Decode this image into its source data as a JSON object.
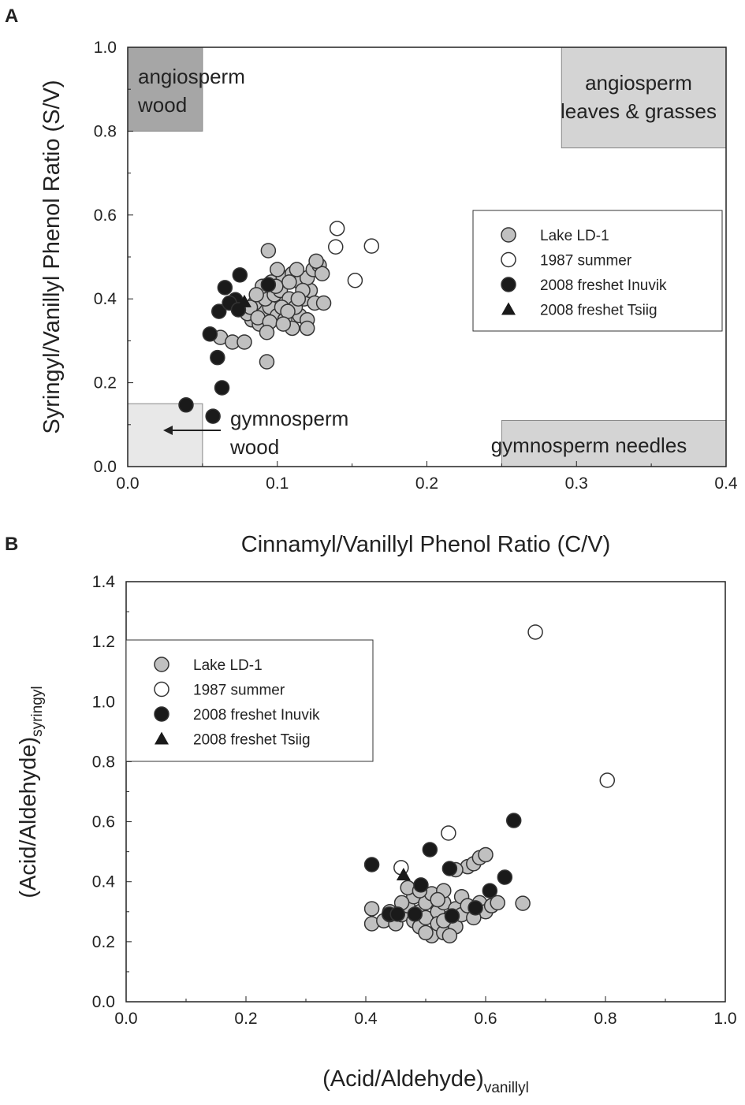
{
  "chart_data": [
    {
      "panel_label": "A",
      "type": "scatter",
      "xlabel": "Cinnamyl/Vanillyl Phenol Ratio (C/V)",
      "ylabel": "Syringyl/Vanillyl Phenol Ratio (S/V)",
      "xlim": [
        0,
        0.4
      ],
      "ylim": [
        0,
        1.0
      ],
      "xticks": [
        "0.0",
        "0.1",
        "0.2",
        "0.3",
        "0.4"
      ],
      "yticks": [
        "0.0",
        "0.2",
        "0.4",
        "0.6",
        "0.8",
        "1.0"
      ],
      "legend_position": "center-right",
      "regions": [
        {
          "label": [
            "angiosperm",
            "wood"
          ],
          "x": [
            0,
            0.05
          ],
          "y": [
            0.8,
            1.0
          ],
          "fill": "#a6a6a6"
        },
        {
          "label": [
            "angiosperm",
            "leaves & grasses"
          ],
          "x": [
            0.29,
            0.4
          ],
          "y": [
            0.76,
            1.0
          ],
          "fill": "#d4d4d4"
        },
        {
          "label": [
            "gymnosperm",
            "wood"
          ],
          "x": [
            0,
            0.05
          ],
          "y": [
            0,
            0.15
          ],
          "fill": "#e8e8e8"
        },
        {
          "label": [
            "gymnosperm needles"
          ],
          "x": [
            0.25,
            0.4
          ],
          "y": [
            0,
            0.11
          ],
          "fill": "#d4d4d4"
        }
      ],
      "series": [
        {
          "name": "Lake LD-1",
          "marker": "circle",
          "fill": "#c0c0c0",
          "points": [
            [
              0.094,
              0.515
            ],
            [
              0.093,
              0.25
            ],
            [
              0.062,
              0.308
            ],
            [
              0.07,
              0.297
            ],
            [
              0.078,
              0.297
            ],
            [
              0.083,
              0.35
            ],
            [
              0.08,
              0.365
            ],
            [
              0.088,
              0.34
            ],
            [
              0.09,
              0.37
            ],
            [
              0.095,
              0.38
            ],
            [
              0.1,
              0.36
            ],
            [
              0.105,
              0.35
            ],
            [
              0.11,
              0.33
            ],
            [
              0.115,
              0.36
            ],
            [
              0.12,
              0.35
            ],
            [
              0.085,
              0.39
            ],
            [
              0.092,
              0.4
            ],
            [
              0.098,
              0.41
            ],
            [
              0.102,
              0.42
            ],
            [
              0.108,
              0.4
            ],
            [
              0.112,
              0.38
            ],
            [
              0.118,
              0.4
            ],
            [
              0.122,
              0.42
            ],
            [
              0.125,
              0.39
            ],
            [
              0.09,
              0.43
            ],
            [
              0.096,
              0.44
            ],
            [
              0.104,
              0.45
            ],
            [
              0.11,
              0.46
            ],
            [
              0.115,
              0.44
            ],
            [
              0.12,
              0.45
            ],
            [
              0.124,
              0.47
            ],
            [
              0.128,
              0.48
            ],
            [
              0.13,
              0.46
            ],
            [
              0.126,
              0.49
            ],
            [
              0.113,
              0.47
            ],
            [
              0.1,
              0.47
            ],
            [
              0.082,
              0.38
            ],
            [
              0.087,
              0.355
            ],
            [
              0.095,
              0.345
            ],
            [
              0.103,
              0.38
            ],
            [
              0.107,
              0.37
            ],
            [
              0.093,
              0.32
            ],
            [
              0.117,
              0.42
            ],
            [
              0.12,
              0.33
            ],
            [
              0.108,
              0.44
            ],
            [
              0.099,
              0.43
            ],
            [
              0.086,
              0.41
            ],
            [
              0.114,
              0.4
            ],
            [
              0.104,
              0.34
            ],
            [
              0.131,
              0.39
            ]
          ]
        },
        {
          "name": "1987 summer",
          "marker": "circle",
          "fill": "#ffffff",
          "points": [
            [
              0.14,
              0.568
            ],
            [
              0.139,
              0.524
            ],
            [
              0.163,
              0.526
            ],
            [
              0.152,
              0.444
            ]
          ]
        },
        {
          "name": "2008 freshet Inuvik",
          "marker": "circle",
          "fill": "#1a1a1a",
          "points": [
            [
              0.039,
              0.147
            ],
            [
              0.057,
              0.12
            ],
            [
              0.063,
              0.188
            ],
            [
              0.06,
              0.26
            ],
            [
              0.055,
              0.316
            ],
            [
              0.061,
              0.37
            ],
            [
              0.065,
              0.427
            ],
            [
              0.075,
              0.457
            ],
            [
              0.072,
              0.398
            ],
            [
              0.068,
              0.39
            ],
            [
              0.074,
              0.374
            ],
            [
              0.094,
              0.434
            ]
          ]
        },
        {
          "name": "2008 freshet Tsiig",
          "marker": "triangle",
          "fill": "#1a1a1a",
          "points": [
            [
              0.078,
              0.393
            ]
          ]
        }
      ]
    },
    {
      "panel_label": "B",
      "type": "scatter",
      "xlabel": "(Acid/Aldehyde)",
      "xlabel_sub": "vanillyl",
      "ylabel": "(Acid/Aldehyde)",
      "ylabel_sub": "syringyl",
      "xlim": [
        0,
        1.0
      ],
      "ylim": [
        0,
        1.4
      ],
      "xticks": [
        "0.0",
        "0.2",
        "0.4",
        "0.6",
        "0.8",
        "1.0"
      ],
      "yticks": [
        "0.0",
        "0.2",
        "0.4",
        "0.6",
        "0.8",
        "1.0",
        "1.2",
        "1.4"
      ],
      "legend_position": "top-left",
      "series": [
        {
          "name": "Lake LD-1",
          "marker": "circle",
          "fill": "#c0c0c0",
          "points": [
            [
              0.41,
              0.26
            ],
            [
              0.41,
              0.31
            ],
            [
              0.43,
              0.27
            ],
            [
              0.44,
              0.3
            ],
            [
              0.45,
              0.26
            ],
            [
              0.46,
              0.29
            ],
            [
              0.47,
              0.32
            ],
            [
              0.48,
              0.27
            ],
            [
              0.48,
              0.35
            ],
            [
              0.49,
              0.3
            ],
            [
              0.49,
              0.25
            ],
            [
              0.5,
              0.33
            ],
            [
              0.5,
              0.28
            ],
            [
              0.51,
              0.22
            ],
            [
              0.51,
              0.36
            ],
            [
              0.52,
              0.3
            ],
            [
              0.52,
              0.26
            ],
            [
              0.53,
              0.23
            ],
            [
              0.53,
              0.33
            ],
            [
              0.53,
              0.37
            ],
            [
              0.54,
              0.28
            ],
            [
              0.55,
              0.31
            ],
            [
              0.55,
              0.25
            ],
            [
              0.56,
              0.35
            ],
            [
              0.56,
              0.29
            ],
            [
              0.57,
              0.32
            ],
            [
              0.57,
              0.45
            ],
            [
              0.58,
              0.46
            ],
            [
              0.59,
              0.48
            ],
            [
              0.6,
              0.49
            ],
            [
              0.59,
              0.33
            ],
            [
              0.6,
              0.3
            ],
            [
              0.61,
              0.32
            ],
            [
              0.55,
              0.44
            ],
            [
              0.47,
              0.38
            ],
            [
              0.49,
              0.37
            ],
            [
              0.52,
              0.34
            ],
            [
              0.58,
              0.28
            ],
            [
              0.62,
              0.33
            ],
            [
              0.662,
              0.328
            ],
            [
              0.44,
              0.29
            ],
            [
              0.46,
              0.33
            ],
            [
              0.54,
              0.22
            ],
            [
              0.5,
              0.23
            ],
            [
              0.53,
              0.27
            ]
          ]
        },
        {
          "name": "1987 summer",
          "marker": "circle",
          "fill": "#ffffff",
          "points": [
            [
              0.683,
              1.232
            ],
            [
              0.803,
              0.738
            ],
            [
              0.538,
              0.562
            ],
            [
              0.459,
              0.447
            ]
          ]
        },
        {
          "name": "2008 freshet Inuvik",
          "marker": "circle",
          "fill": "#1a1a1a",
          "points": [
            [
              0.41,
              0.457
            ],
            [
              0.507,
              0.507
            ],
            [
              0.54,
              0.444
            ],
            [
              0.647,
              0.604
            ],
            [
              0.632,
              0.415
            ],
            [
              0.607,
              0.37
            ],
            [
              0.583,
              0.313
            ],
            [
              0.544,
              0.286
            ],
            [
              0.492,
              0.389
            ],
            [
              0.482,
              0.292
            ],
            [
              0.439,
              0.292
            ],
            [
              0.453,
              0.292
            ]
          ]
        },
        {
          "name": "2008 freshet Tsiig",
          "marker": "triangle",
          "fill": "#1a1a1a",
          "points": [
            [
              0.463,
              0.423
            ]
          ]
        }
      ]
    }
  ]
}
